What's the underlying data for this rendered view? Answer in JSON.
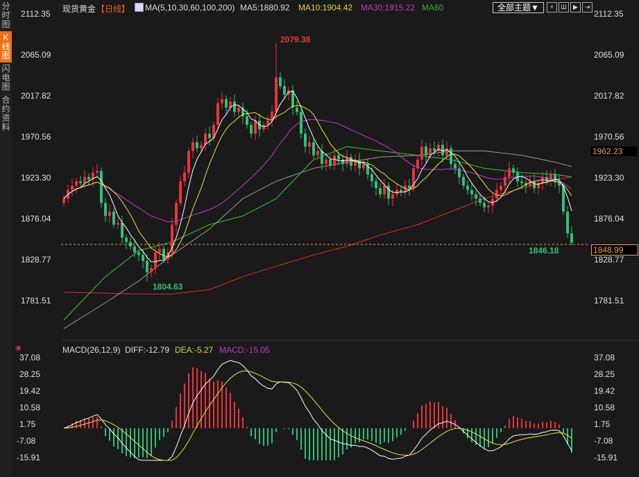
{
  "sidebar": {
    "tabs": [
      {
        "label": "分时图"
      },
      {
        "label": "K线图",
        "active": true
      },
      {
        "label": "闪电图"
      },
      {
        "label": "合约资料"
      }
    ]
  },
  "header": {
    "instrument": "现货黄金",
    "period": "【日线】",
    "ma_label": "MA(5,10,30,60,100,200)",
    "ma5": "MA5:1880.92",
    "ma10": "MA10:1904.42",
    "ma30": "MA30:1915.22",
    "ma60": "MA60",
    "theme_button": "全部主题▼"
  },
  "macd_header": {
    "label": "MACD(26,12,9)",
    "diff": "DIFF:-12.79",
    "dea": "DEA:-5.27",
    "macd": "MACD:-15.05"
  },
  "colors": {
    "up": "#e8343a",
    "down": "#2fc078",
    "ma5": "#ffffff",
    "ma10": "#e8e84a",
    "ma30": "#c83cc8",
    "ma60": "#3cc83c",
    "ma100": "#9a9a9a",
    "ma200": "#e03030",
    "last_price": "#f0a050"
  },
  "chart_data": [
    {
      "type": "candlestick",
      "title": "现货黄金",
      "ylim": [
        1781.51,
        2112.35
      ],
      "y_ticks": [
        "2112.35",
        "2065.09",
        "2017.82",
        "1970.56",
        "1923.30",
        "1876.04",
        "1828.77",
        "1781.51"
      ],
      "closes": [
        1900,
        1910,
        1915,
        1920,
        1918,
        1925,
        1922,
        1930,
        1932,
        1895,
        1880,
        1885,
        1870,
        1872,
        1855,
        1850,
        1845,
        1838,
        1835,
        1828,
        1815,
        1820,
        1838,
        1842,
        1830,
        1838,
        1870,
        1895,
        1920,
        1930,
        1955,
        1965,
        1958,
        1962,
        1975,
        1970,
        1985,
        2010,
        2015,
        2005,
        2012,
        2000,
        2005,
        1995,
        1985,
        1975,
        1990,
        1980,
        1985,
        1990,
        2000,
        2040,
        2030,
        2020,
        2025,
        2005,
        2000,
        1975,
        1960,
        1965,
        1950,
        1955,
        1940,
        1945,
        1938,
        1950,
        1945,
        1940,
        1948,
        1938,
        1945,
        1935,
        1940,
        1928,
        1920,
        1912,
        1905,
        1915,
        1900,
        1905,
        1910,
        1908,
        1915,
        1912,
        1935,
        1945,
        1960,
        1950,
        1958,
        1955,
        1962,
        1950,
        1958,
        1940,
        1935,
        1925,
        1915,
        1910,
        1905,
        1900,
        1895,
        1890,
        1892,
        1900,
        1910,
        1915,
        1925,
        1935,
        1930,
        1920,
        1918,
        1915,
        1920,
        1912,
        1918,
        1925,
        1920,
        1928,
        1920,
        1915,
        1885,
        1860,
        1849
      ],
      "ma60": [
        [
          0,
          1760
        ],
        [
          10,
          1810
        ],
        [
          18,
          1840
        ],
        [
          26,
          1850
        ],
        [
          35,
          1870
        ],
        [
          43,
          1880
        ],
        [
          51,
          1900
        ],
        [
          60,
          1945
        ],
        [
          68,
          1960
        ],
        [
          76,
          1955
        ],
        [
          85,
          1950
        ],
        [
          93,
          1945
        ],
        [
          101,
          1935
        ],
        [
          110,
          1930
        ],
        [
          118,
          1928
        ],
        [
          122,
          1925
        ]
      ],
      "ma100": [
        [
          0,
          1750
        ],
        [
          10,
          1780
        ],
        [
          18,
          1805
        ],
        [
          26,
          1835
        ],
        [
          35,
          1865
        ],
        [
          43,
          1900
        ],
        [
          51,
          1920
        ],
        [
          60,
          1935
        ],
        [
          68,
          1942
        ],
        [
          76,
          1948
        ],
        [
          85,
          1950
        ],
        [
          93,
          1955
        ],
        [
          101,
          1955
        ],
        [
          110,
          1950
        ],
        [
          118,
          1942
        ],
        [
          122,
          1937
        ]
      ],
      "ma200": [
        [
          0,
          1792
        ],
        [
          10,
          1791
        ],
        [
          18,
          1790
        ],
        [
          26,
          1790
        ],
        [
          35,
          1795
        ],
        [
          43,
          1810
        ],
        [
          51,
          1822
        ],
        [
          60,
          1835
        ],
        [
          68,
          1845
        ],
        [
          76,
          1858
        ],
        [
          85,
          1870
        ],
        [
          93,
          1885
        ],
        [
          101,
          1900
        ],
        [
          110,
          1912
        ],
        [
          118,
          1922
        ],
        [
          122,
          1925
        ]
      ],
      "annotations": {
        "high": "2079.38",
        "low": "1804.63",
        "recent_low": "1846.18",
        "last_price": "1848.99",
        "marker": "1962.23"
      }
    },
    {
      "type": "macd",
      "ylim": [
        -15.91,
        37.08
      ],
      "y_ticks": [
        "37.08",
        "28.25",
        "19.42",
        "10.58",
        "1.75",
        "-7.08",
        "-15.91"
      ]
    }
  ]
}
